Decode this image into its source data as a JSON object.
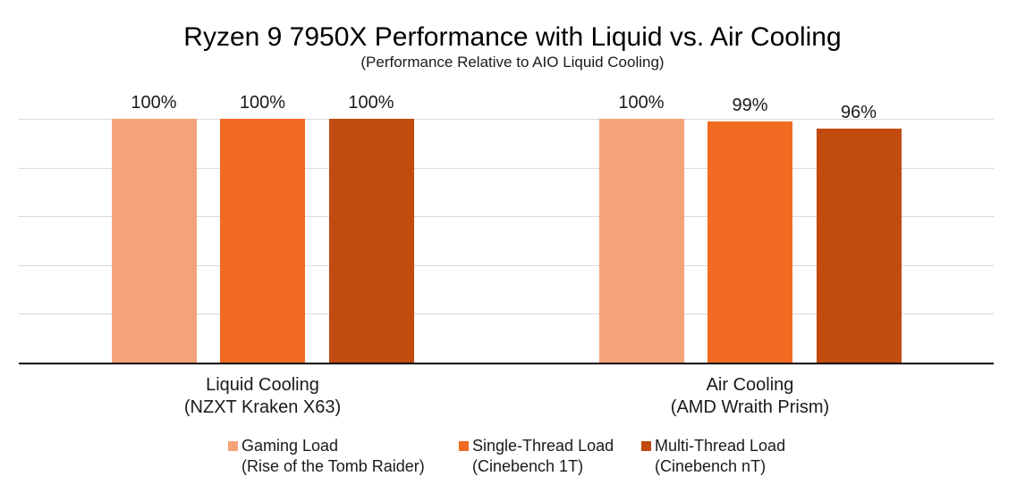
{
  "page": {
    "background": "#FFFFFF"
  },
  "chart_data": {
    "type": "bar",
    "title": "Ryzen 9 7950X Performance with Liquid vs. Air Cooling",
    "subtitle": "(Performance Relative to AIO Liquid Cooling)",
    "categories": [
      {
        "label": "Liquid Cooling",
        "sublabel": "(NZXT Kraken X63)"
      },
      {
        "label": "Air Cooling",
        "sublabel": "(AMD Wraith Prism)"
      }
    ],
    "series": [
      {
        "name": "Gaming Load",
        "detail": "(Rise of the Tomb Raider)",
        "color": "#F6A278",
        "values": [
          100,
          100
        ],
        "data_labels": [
          "100%",
          "100%"
        ]
      },
      {
        "name": "Single-Thread Load",
        "detail": "(Cinebench 1T)",
        "color": "#F26A21",
        "values": [
          100,
          99
        ],
        "data_labels": [
          "100%",
          "99%"
        ]
      },
      {
        "name": "Multi-Thread Load",
        "detail": "(Cinebench nT)",
        "color": "#C24B10",
        "values": [
          100,
          96
        ],
        "data_labels": [
          "100%",
          "96%"
        ]
      }
    ],
    "ylim": [
      0,
      100
    ],
    "gridline_step_pct": 20,
    "grid": true,
    "y_axis_labels_visible": false,
    "legend_position": "bottom",
    "colors": {
      "gridline": "#D9D9D9",
      "axis_line": "#000000",
      "text": "#1A1A1A"
    }
  }
}
